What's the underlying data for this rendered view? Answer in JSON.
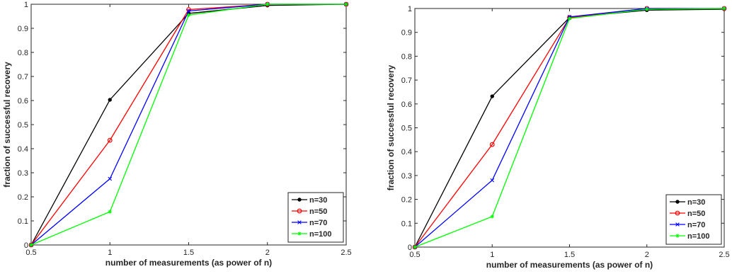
{
  "chart_data": [
    {
      "type": "line",
      "title": "",
      "xlabel": "number of measurements (as power of n)",
      "ylabel": "fraction of successful recovery",
      "xlim": [
        0.5,
        2.5
      ],
      "ylim": [
        0,
        1
      ],
      "x": [
        0.5,
        1,
        1.5,
        2,
        2.5
      ],
      "xticks": [
        "0.5",
        "1",
        "1.5",
        "2",
        "2.5"
      ],
      "yticks": [
        "0",
        "0.1",
        "0.2",
        "0.3",
        "0.4",
        "0.5",
        "0.6",
        "0.7",
        "0.8",
        "0.9",
        "1"
      ],
      "grid": false,
      "legend_position": "bottom-right",
      "series": [
        {
          "name": "n=30",
          "color": "#000000",
          "marker": "dot",
          "values": [
            0,
            0.603,
            0.962,
            0.995,
            1.0
          ]
        },
        {
          "name": "n=50",
          "color": "#ff0000",
          "marker": "circle",
          "values": [
            0,
            0.435,
            0.978,
            1.0,
            1.0
          ]
        },
        {
          "name": "n=70",
          "color": "#0000ff",
          "marker": "x",
          "values": [
            0,
            0.275,
            0.972,
            1.0,
            1.0
          ]
        },
        {
          "name": "n=100",
          "color": "#00ff00",
          "marker": "star",
          "values": [
            0,
            0.138,
            0.955,
            1.0,
            1.0
          ]
        }
      ]
    },
    {
      "type": "line",
      "title": "",
      "xlabel": "number of measurements (as power of n)",
      "ylabel": "fraction of successful recovery",
      "xlim": [
        0.5,
        2.5
      ],
      "ylim": [
        0,
        1
      ],
      "x": [
        0.5,
        1,
        1.5,
        2,
        2.5
      ],
      "xticks": [
        "0.5",
        "1",
        "1.5",
        "2",
        "2.5"
      ],
      "yticks": [
        "0",
        "0.1",
        "0.2",
        "0.3",
        "0.4",
        "0.5",
        "0.6",
        "0.7",
        "0.8",
        "0.9",
        "1"
      ],
      "grid": false,
      "legend_position": "bottom-right",
      "series": [
        {
          "name": "n=30",
          "color": "#000000",
          "marker": "dot",
          "values": [
            0,
            0.632,
            0.962,
            0.993,
            0.997
          ]
        },
        {
          "name": "n=50",
          "color": "#ff0000",
          "marker": "circle",
          "values": [
            0,
            0.43,
            0.962,
            1.0,
            1.0
          ]
        },
        {
          "name": "n=70",
          "color": "#0000ff",
          "marker": "x",
          "values": [
            0,
            0.28,
            0.965,
            1.0,
            1.0
          ]
        },
        {
          "name": "n=100",
          "color": "#00ff00",
          "marker": "star",
          "values": [
            0,
            0.128,
            0.958,
            0.997,
            1.0
          ]
        }
      ]
    }
  ]
}
